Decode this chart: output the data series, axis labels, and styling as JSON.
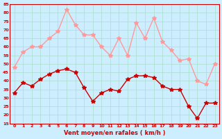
{
  "x": [
    0,
    1,
    2,
    3,
    4,
    5,
    6,
    7,
    8,
    9,
    10,
    11,
    12,
    13,
    14,
    15,
    16,
    17,
    18,
    19,
    20,
    21,
    22,
    23
  ],
  "wind_avg": [
    33,
    39,
    37,
    41,
    44,
    46,
    47,
    45,
    36,
    28,
    33,
    35,
    34,
    41,
    43,
    43,
    42,
    37,
    35,
    35,
    25,
    18,
    27,
    27
  ],
  "wind_gust": [
    48,
    57,
    60,
    60,
    65,
    69,
    82,
    73,
    67,
    67,
    60,
    55,
    65,
    55,
    74,
    65,
    77,
    63,
    58,
    52,
    53,
    40,
    38,
    50
  ],
  "avg_color": "#cc0000",
  "gust_color": "#ff9999",
  "bg_color": "#cceeff",
  "grid_color": "#aaddcc",
  "text_color": "#cc0000",
  "xlabel": "Vent moyen/en rafales ( km/h )",
  "ylim": [
    15,
    85
  ],
  "yticks": [
    15,
    20,
    25,
    30,
    35,
    40,
    45,
    50,
    55,
    60,
    65,
    70,
    75,
    80,
    85
  ],
  "xticks": [
    0,
    1,
    2,
    3,
    4,
    5,
    6,
    7,
    8,
    9,
    10,
    11,
    12,
    13,
    14,
    15,
    16,
    17,
    18,
    19,
    20,
    21,
    22,
    23
  ]
}
